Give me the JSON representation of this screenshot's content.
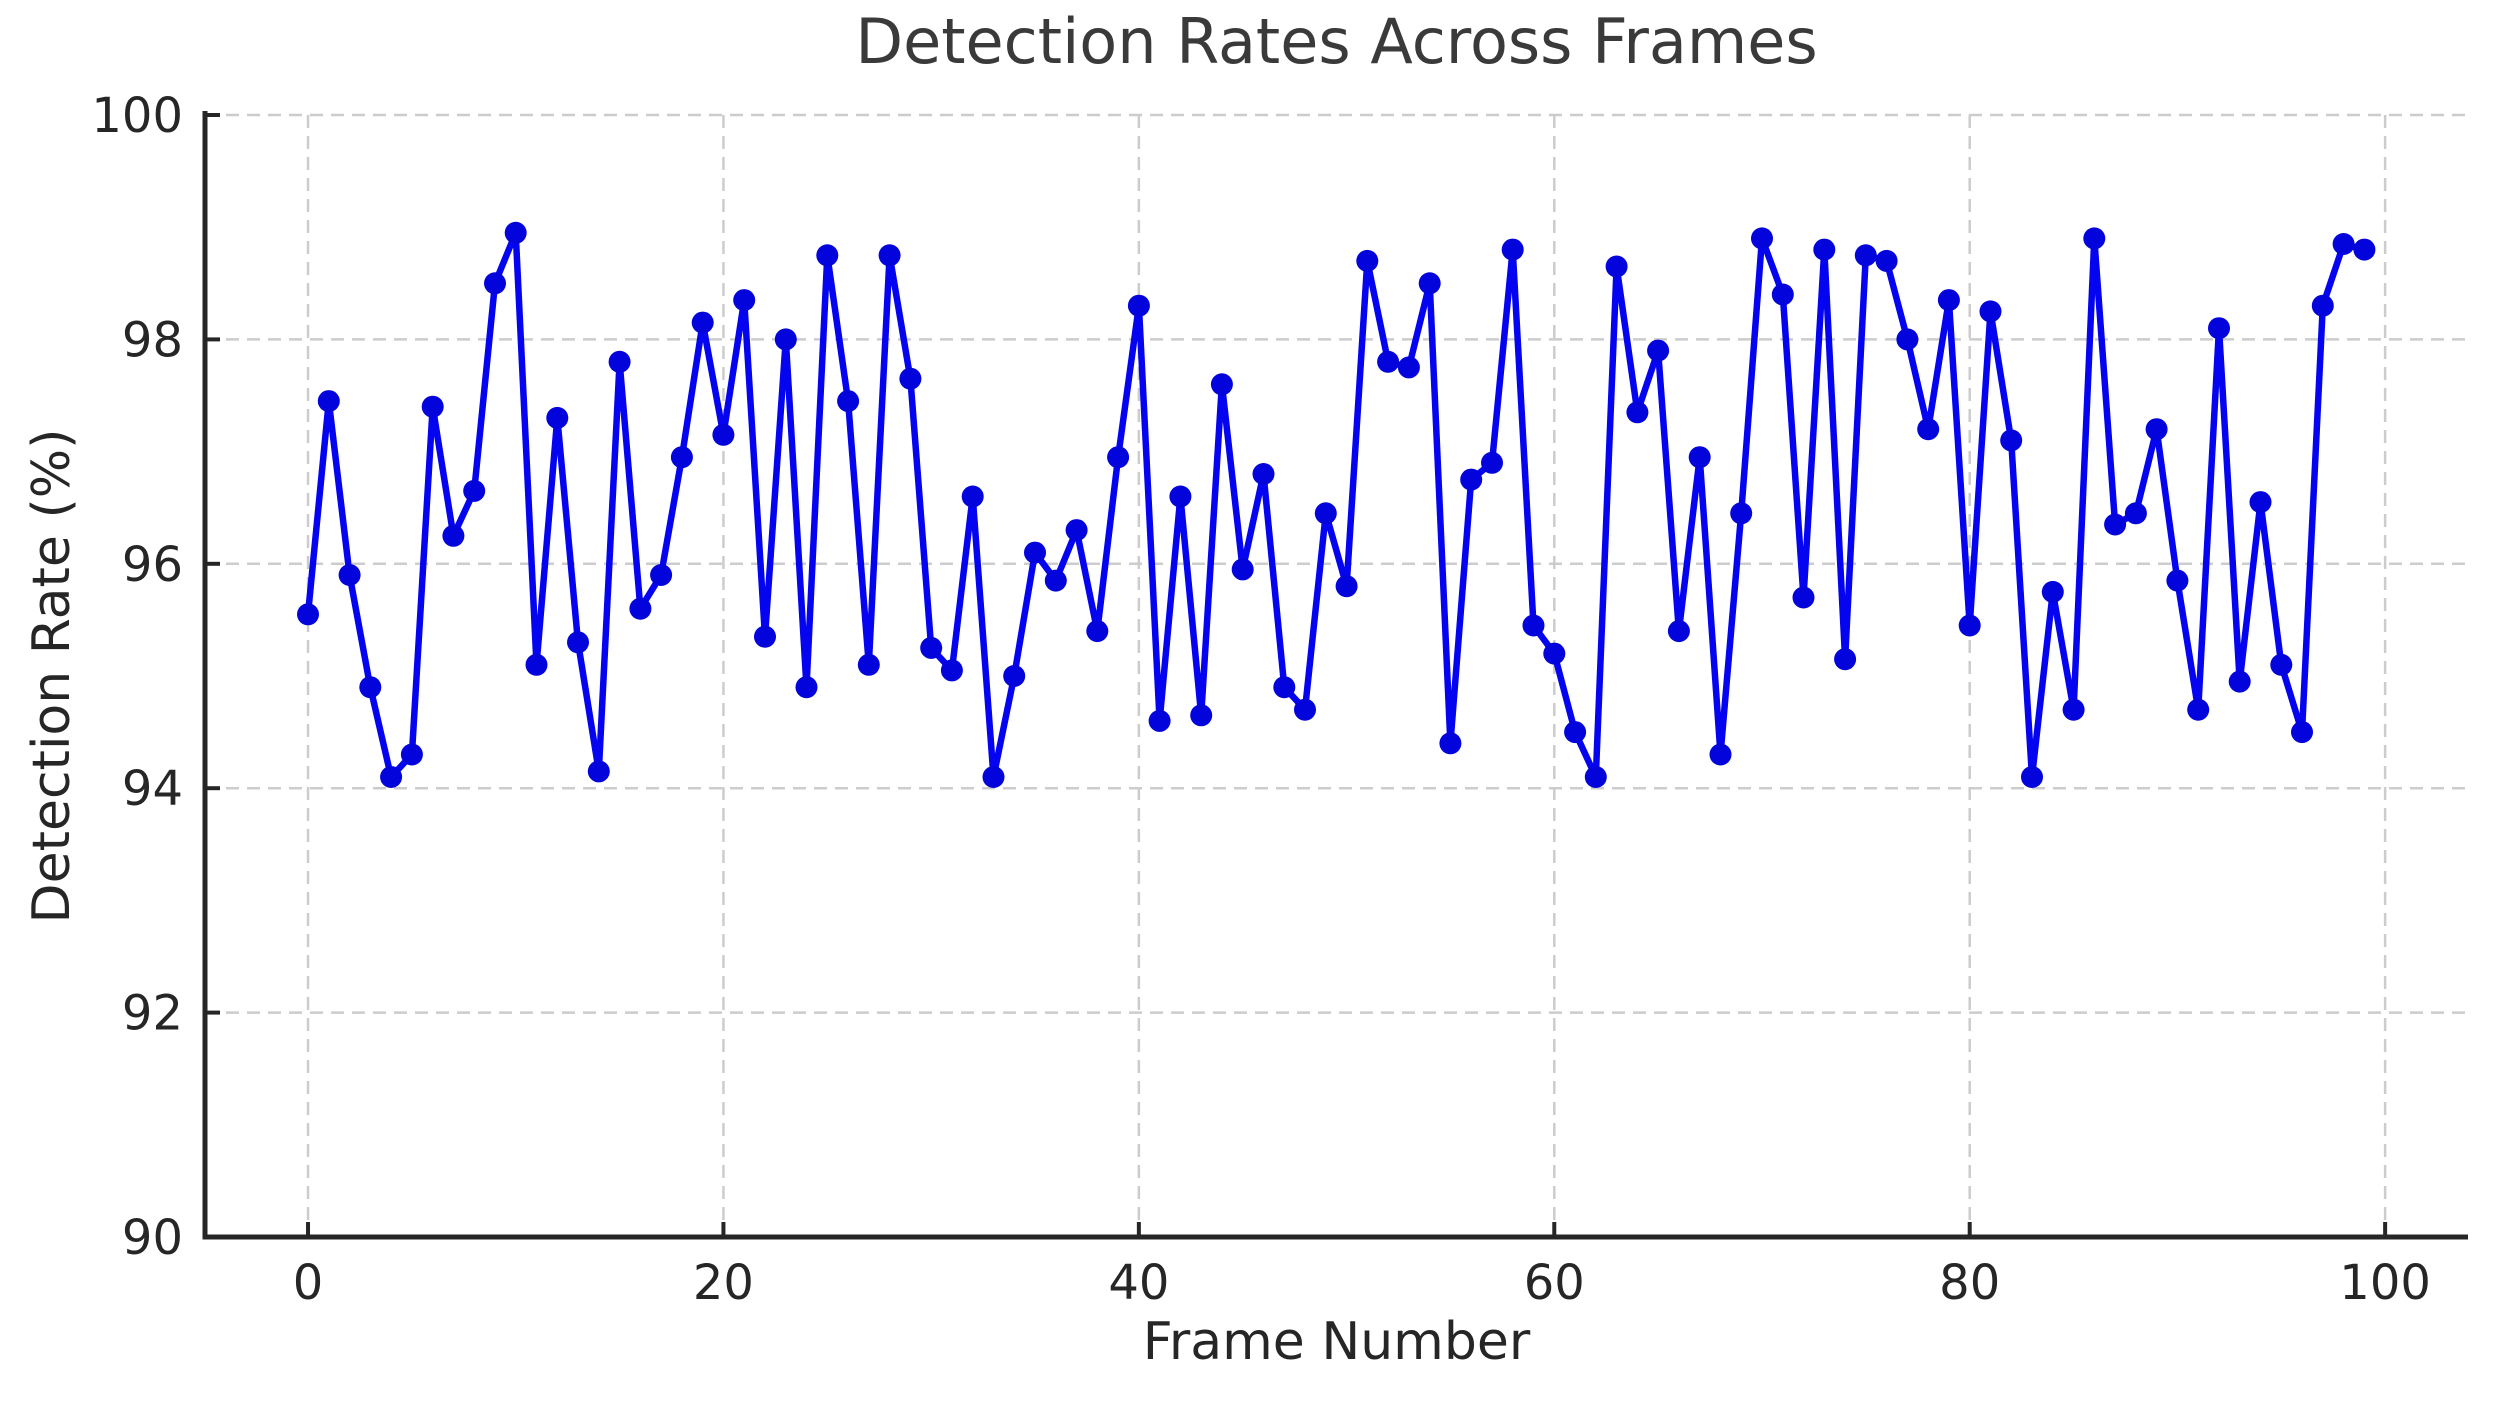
{
  "chart_data": {
    "type": "line",
    "title": "Detection Rates Across Frames",
    "xlabel": "Frame Number",
    "ylabel": "Detection Rate (%)",
    "legend": "none",
    "grid": true,
    "grid_style": "dashed",
    "xlim": [
      -4.96,
      103.99
    ],
    "ylim": [
      90,
      100
    ],
    "x_ticks": [
      0,
      20,
      40,
      60,
      80,
      100
    ],
    "y_ticks": [
      90,
      92,
      94,
      96,
      98,
      100
    ],
    "marker": "o",
    "line_color": "#0404f0",
    "marker_color": "#0303dc",
    "grid_color": "#cccccc",
    "spine_color": "#262626",
    "tick_text_color": "#262626",
    "title_color": "#3a3a3a",
    "x": [
      0,
      1,
      2,
      3,
      4,
      5,
      6,
      7,
      8,
      9,
      10,
      11,
      12,
      13,
      14,
      15,
      16,
      17,
      18,
      19,
      20,
      21,
      22,
      23,
      24,
      25,
      26,
      27,
      28,
      29,
      30,
      31,
      32,
      33,
      34,
      35,
      36,
      37,
      38,
      39,
      40,
      41,
      42,
      43,
      44,
      45,
      46,
      47,
      48,
      49,
      50,
      51,
      52,
      53,
      54,
      55,
      56,
      57,
      58,
      59,
      60,
      61,
      62,
      63,
      64,
      65,
      66,
      67,
      68,
      69,
      70,
      71,
      72,
      73,
      74,
      75,
      76,
      77,
      78,
      79,
      80,
      81,
      82,
      83,
      84,
      85,
      86,
      87,
      88,
      89,
      90,
      91,
      92,
      93,
      94,
      95,
      96,
      97,
      98,
      99
    ],
    "y": [
      95.55,
      97.45,
      95.9,
      94.9,
      94.1,
      94.3,
      97.4,
      96.25,
      96.65,
      98.5,
      98.95,
      95.1,
      97.3,
      95.3,
      94.15,
      97.8,
      95.6,
      95.9,
      96.95,
      98.15,
      97.15,
      98.35,
      95.35,
      98.0,
      94.9,
      98.75,
      97.45,
      95.1,
      98.75,
      97.65,
      95.25,
      95.05,
      96.6,
      94.1,
      95.0,
      96.1,
      95.85,
      96.3,
      95.4,
      96.95,
      98.3,
      94.6,
      96.6,
      94.65,
      97.6,
      95.95,
      96.8,
      94.9,
      94.7,
      96.45,
      95.8,
      98.7,
      97.8,
      97.75,
      98.5,
      94.4,
      96.75,
      96.9,
      98.8,
      95.45,
      95.2,
      94.5,
      94.1,
      98.65,
      97.35,
      97.9,
      95.4,
      96.95,
      94.3,
      96.45,
      98.9,
      98.4,
      95.7,
      98.8,
      95.15,
      98.75,
      98.7,
      98.0,
      97.2,
      98.35,
      95.45,
      98.25,
      97.1,
      94.1,
      95.75,
      94.7,
      98.9,
      96.35,
      96.45,
      97.2,
      95.85,
      94.7,
      98.1,
      94.95,
      96.55,
      95.1,
      94.5,
      98.3,
      98.85,
      98.8
    ]
  }
}
